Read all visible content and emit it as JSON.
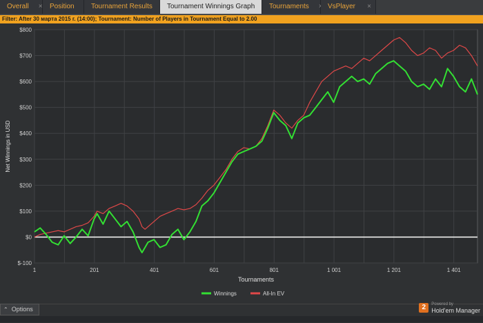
{
  "tabs": [
    {
      "label": "Overall",
      "active": false
    },
    {
      "label": "Position",
      "active": false
    },
    {
      "label": "Tournament Results",
      "active": false
    },
    {
      "label": "Tournament Winnings Graph",
      "active": true
    },
    {
      "label": "Tournaments",
      "active": false
    },
    {
      "label": "VsPlayer",
      "active": false
    }
  ],
  "tab_close": "×",
  "filter_text": "Filter: After 30 марта 2015 г. (14:00); Tournament: Number of Players in Tournament Equal to 2.00",
  "options_label": "Options",
  "brand": {
    "powered": "Powered by",
    "name": "Hold'em Manager",
    "logo": "2"
  },
  "colors": {
    "winnings": "#33e033",
    "allin": "#e04848",
    "zero": "#ffffff",
    "filter_bg": "#f1a21f",
    "tab_text": "#e8a33a"
  },
  "chart_data": {
    "type": "line",
    "xlabel": "Tournaments",
    "ylabel": "Net Winnings in USD",
    "xlim": [
      1,
      1480
    ],
    "ylim": [
      -100,
      800
    ],
    "x_ticks": [
      1,
      201,
      401,
      601,
      801,
      1001,
      1201,
      1401
    ],
    "x_tick_labels": [
      "1",
      "201",
      "401",
      "601",
      "801",
      "1 001",
      "1 201",
      "1 401"
    ],
    "y_ticks": [
      -100,
      0,
      100,
      200,
      300,
      400,
      500,
      600,
      700,
      800
    ],
    "y_tick_labels": [
      "$-100",
      "$0",
      "$100",
      "$200",
      "$300",
      "$400",
      "$500",
      "$600",
      "$700",
      "$800"
    ],
    "grid": true,
    "legend_position": "bottom-center",
    "series": [
      {
        "name": "Winnings",
        "color": "#33e033",
        "x": [
          1,
          20,
          40,
          60,
          80,
          100,
          120,
          140,
          160,
          180,
          200,
          210,
          230,
          250,
          270,
          290,
          310,
          330,
          350,
          360,
          370,
          380,
          400,
          420,
          440,
          460,
          480,
          500,
          520,
          540,
          560,
          580,
          600,
          620,
          640,
          660,
          680,
          700,
          720,
          740,
          760,
          780,
          800,
          820,
          840,
          860,
          880,
          900,
          920,
          940,
          960,
          980,
          1000,
          1020,
          1040,
          1060,
          1080,
          1100,
          1120,
          1140,
          1160,
          1180,
          1200,
          1220,
          1240,
          1260,
          1280,
          1300,
          1320,
          1340,
          1360,
          1380,
          1400,
          1420,
          1440,
          1460,
          1480
        ],
        "y": [
          20,
          35,
          10,
          -20,
          -30,
          5,
          -25,
          0,
          30,
          5,
          70,
          90,
          50,
          100,
          70,
          40,
          60,
          20,
          -40,
          -60,
          -40,
          -20,
          -10,
          -40,
          -30,
          10,
          30,
          -10,
          20,
          60,
          120,
          140,
          170,
          210,
          250,
          290,
          320,
          330,
          340,
          350,
          370,
          420,
          480,
          450,
          430,
          380,
          440,
          460,
          470,
          500,
          530,
          560,
          520,
          580,
          600,
          620,
          600,
          610,
          590,
          630,
          650,
          670,
          680,
          660,
          640,
          600,
          580,
          590,
          570,
          610,
          580,
          650,
          620,
          580,
          560,
          610,
          550
        ]
      },
      {
        "name": "All-In EV",
        "color": "#e04848",
        "x": [
          1,
          20,
          40,
          60,
          80,
          100,
          120,
          140,
          160,
          180,
          200,
          210,
          230,
          250,
          270,
          290,
          310,
          330,
          350,
          360,
          370,
          380,
          400,
          420,
          440,
          460,
          480,
          500,
          520,
          540,
          560,
          580,
          600,
          620,
          640,
          660,
          680,
          700,
          720,
          740,
          760,
          780,
          800,
          820,
          840,
          860,
          880,
          900,
          920,
          940,
          960,
          980,
          1000,
          1020,
          1040,
          1060,
          1080,
          1100,
          1120,
          1140,
          1160,
          1180,
          1200,
          1220,
          1240,
          1260,
          1280,
          1300,
          1320,
          1340,
          1360,
          1380,
          1400,
          1420,
          1440,
          1460,
          1480
        ],
        "y": [
          0,
          10,
          15,
          20,
          25,
          20,
          30,
          40,
          45,
          55,
          80,
          100,
          90,
          110,
          120,
          130,
          120,
          100,
          70,
          40,
          30,
          40,
          60,
          80,
          90,
          100,
          110,
          105,
          110,
          125,
          150,
          180,
          200,
          230,
          260,
          300,
          330,
          345,
          340,
          350,
          380,
          430,
          490,
          470,
          440,
          420,
          450,
          470,
          520,
          560,
          600,
          620,
          640,
          650,
          660,
          650,
          670,
          690,
          680,
          700,
          720,
          740,
          760,
          770,
          750,
          720,
          700,
          710,
          730,
          720,
          690,
          710,
          720,
          740,
          730,
          700,
          660
        ]
      }
    ]
  }
}
